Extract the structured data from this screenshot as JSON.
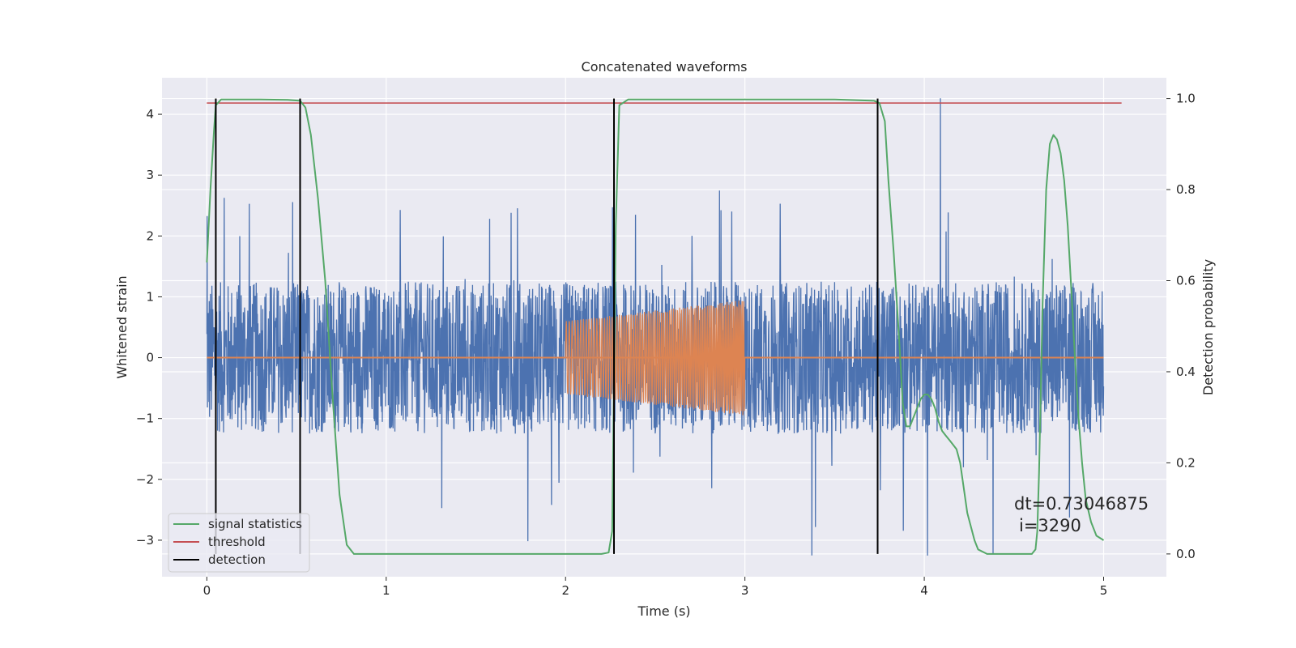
{
  "chart_data": {
    "type": "line",
    "title": "Concatenated waveforms",
    "xlabel": "Time (s)",
    "ylabel": "Whitened strain",
    "y2label": "Detection probability",
    "xlim": [
      -0.25,
      5.35
    ],
    "ylim": [
      -3.6,
      4.6
    ],
    "y2lim": [
      -0.05,
      1.0455
    ],
    "xticks": [
      "0",
      "1",
      "2",
      "3",
      "4",
      "5"
    ],
    "yticks": [
      "−3",
      "−2",
      "−1",
      "0",
      "1",
      "2",
      "3",
      "4"
    ],
    "y2ticks": [
      "0.0",
      "0.2",
      "0.4",
      "0.6",
      "0.8",
      "1.0"
    ],
    "grid": true,
    "legend_position": "lower-left",
    "colors": {
      "background": "#eaeaf2",
      "noise": "#4c72b0",
      "injection": "#dd8452",
      "signal_statistics": "#55a868",
      "threshold": "#c44e52",
      "detection": "#000000"
    },
    "series": [
      {
        "name": "signal statistics",
        "axis": "right",
        "x": [
          0.0,
          0.02,
          0.04,
          0.05,
          0.08,
          0.15,
          0.3,
          0.45,
          0.52,
          0.55,
          0.58,
          0.62,
          0.66,
          0.7,
          0.74,
          0.78,
          0.82,
          1.0,
          2.0,
          2.2,
          2.24,
          2.26,
          2.28,
          2.3,
          2.35,
          2.5,
          3.0,
          3.5,
          3.72,
          3.75,
          3.78,
          3.8,
          3.83,
          3.86,
          3.88,
          3.9,
          3.92,
          3.95,
          3.98,
          4.0,
          4.02,
          4.04,
          4.06,
          4.08,
          4.1,
          4.12,
          4.14,
          4.16,
          4.18,
          4.2,
          4.24,
          4.28,
          4.3,
          4.35,
          4.5,
          4.6,
          4.62,
          4.63,
          4.64,
          4.66,
          4.68,
          4.7,
          4.72,
          4.74,
          4.76,
          4.78,
          4.8,
          4.82,
          4.84,
          4.86,
          4.88,
          4.9,
          4.93,
          4.96,
          5.0
        ],
        "y": [
          0.64,
          0.8,
          0.93,
          0.985,
          0.998,
          0.998,
          0.998,
          0.997,
          0.995,
          0.98,
          0.92,
          0.78,
          0.6,
          0.35,
          0.13,
          0.02,
          0.0,
          0.0,
          0.0,
          0.0,
          0.003,
          0.05,
          0.72,
          0.985,
          0.998,
          0.998,
          0.998,
          0.998,
          0.995,
          0.99,
          0.95,
          0.82,
          0.66,
          0.47,
          0.33,
          0.28,
          0.28,
          0.31,
          0.34,
          0.35,
          0.35,
          0.34,
          0.32,
          0.29,
          0.27,
          0.26,
          0.25,
          0.24,
          0.23,
          0.2,
          0.09,
          0.03,
          0.01,
          0.0,
          0.0,
          0.0,
          0.01,
          0.05,
          0.18,
          0.55,
          0.8,
          0.9,
          0.92,
          0.91,
          0.88,
          0.82,
          0.72,
          0.58,
          0.43,
          0.3,
          0.2,
          0.12,
          0.07,
          0.04,
          0.03
        ]
      },
      {
        "name": "threshold",
        "axis": "right",
        "x": [
          0.0,
          5.1
        ],
        "y": [
          0.99,
          0.99
        ]
      },
      {
        "name": "detection",
        "axis": "right",
        "vertical_lines_x": [
          0.05,
          0.52,
          2.27,
          3.74
        ],
        "y_range": [
          0.0,
          1.0
        ]
      },
      {
        "name": "",
        "axis": "left",
        "kind": "noise",
        "x_range": [
          0.0,
          5.0
        ],
        "amplitude_envelope": 1.25,
        "peak_range": [
          -3.3,
          4.3
        ]
      },
      {
        "name": "",
        "axis": "left",
        "kind": "injection",
        "x_range": [
          2.0,
          3.0
        ],
        "amplitude_start": 0.6,
        "amplitude_end": 0.95,
        "baseline": 0
      }
    ],
    "annotations": [
      "dt=0.73046875",
      "i=3290"
    ]
  }
}
